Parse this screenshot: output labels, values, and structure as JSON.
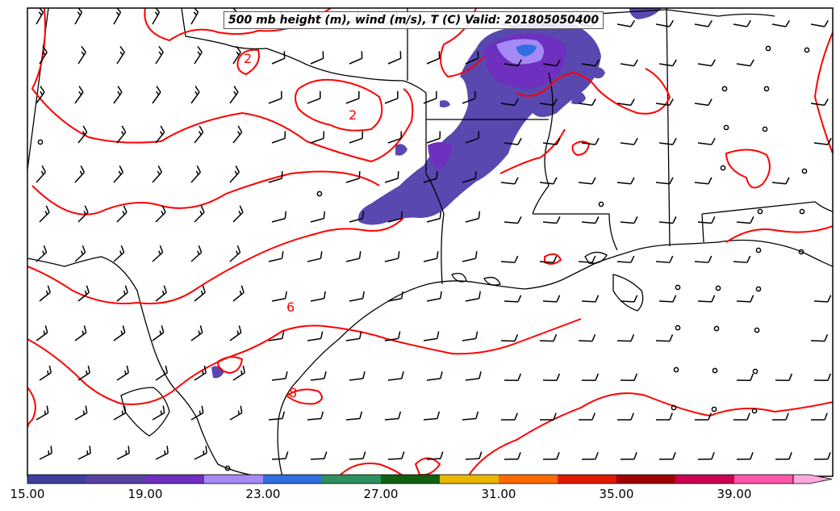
{
  "title": "500 mb height (m), wind (m/s), T (C) Valid: 201805050400",
  "contour_labels": [
    "2",
    "2",
    "6",
    "8"
  ],
  "colorbar": {
    "tick_labels": [
      "15.00",
      "19.00",
      "23.00",
      "27.00",
      "31.00",
      "35.00",
      "39.00"
    ],
    "colors": [
      "#3f3f9f",
      "#57439f",
      "#6f2fbf",
      "#a58af5",
      "#2f6fe0",
      "#2f8f5f",
      "#106010",
      "#e8b800",
      "#ff6a00",
      "#e01a00",
      "#9f0000",
      "#cc0050",
      "#ff55aa",
      "#ffaadd"
    ],
    "extend": "max"
  },
  "colors": {
    "contour": "#ff0000",
    "border": "#000000",
    "coast": "#000000"
  }
}
